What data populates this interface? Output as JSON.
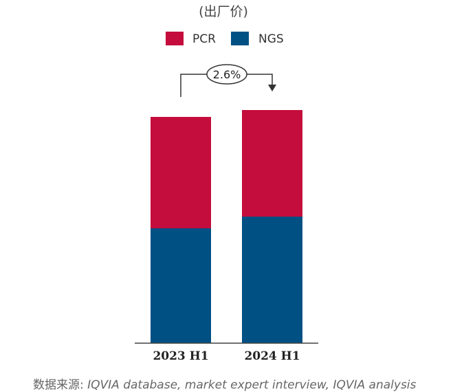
{
  "chart_data": {
    "type": "bar",
    "stacked": true,
    "unit_label": "(出厂价)",
    "categories": [
      "2023 H1",
      "2024 H1"
    ],
    "series": [
      {
        "name": "NGS",
        "color": "#005083",
        "values": [
          167,
          184
        ]
      },
      {
        "name": "PCR",
        "color": "#c40d3c",
        "values": [
          162,
          155
        ]
      }
    ],
    "legend_order": [
      "PCR",
      "NGS"
    ],
    "legend_position": "top",
    "ylim": [
      0,
      340
    ],
    "y_axis_shown": false,
    "grid": false,
    "annotation": {
      "text": "2.6%",
      "from": "2023 H1",
      "to": "2024 H1"
    }
  },
  "source": {
    "prefix": "数据来源:",
    "text": " IQVIA database, market expert interview, IQVIA analysis"
  }
}
